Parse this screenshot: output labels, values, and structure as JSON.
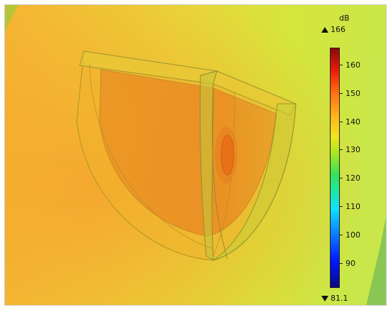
{
  "colorbar": {
    "unit": "dB",
    "max_label": "166",
    "min_label": "81.1",
    "max": 166,
    "min": 81.1,
    "ticks": [
      "160",
      "150",
      "140",
      "130",
      "120",
      "110",
      "100",
      "90"
    ]
  },
  "icons": {
    "max_marker": "triangle-up-icon",
    "min_marker": "triangle-down-icon"
  },
  "colors": {
    "background_yellow": "#d8e63a",
    "background_orange": "#f7bb31",
    "shell_orange": "#f2a127",
    "core_orange": "#e8881f",
    "edge_green": "#b8d43a"
  }
}
